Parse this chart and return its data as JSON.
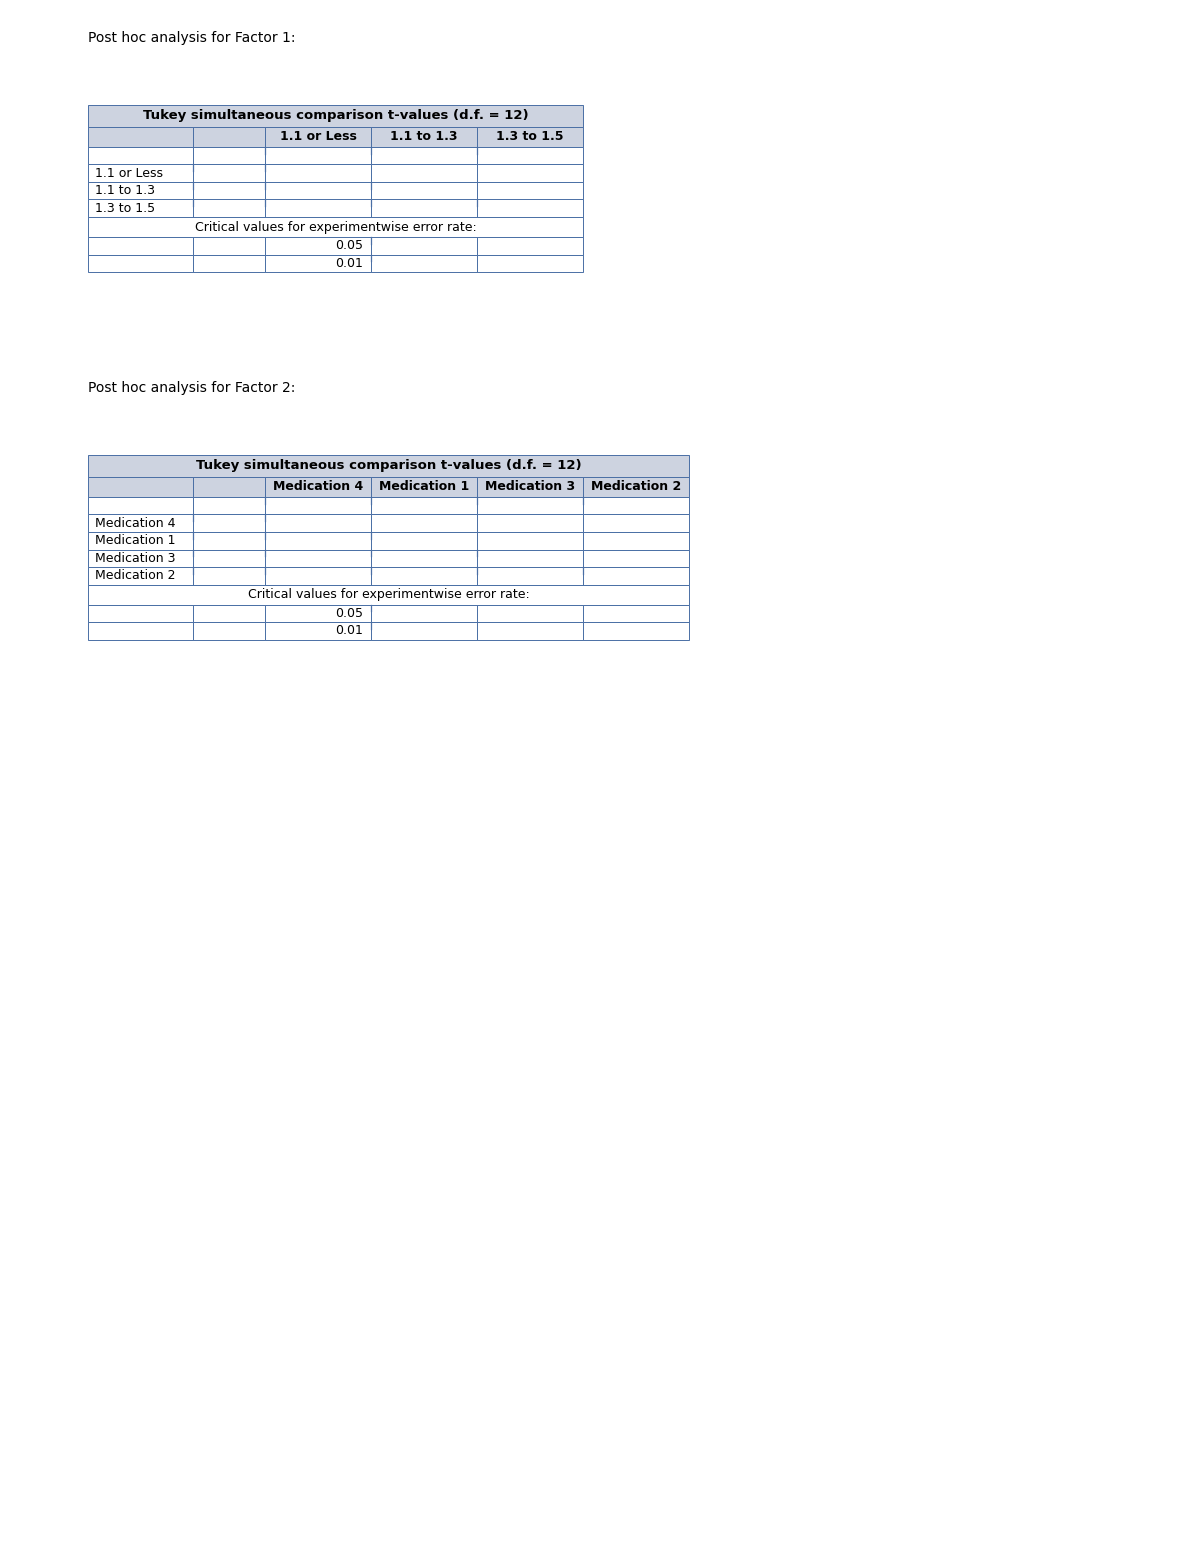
{
  "bg_color": "#ffffff",
  "header_bg": "#cdd3e0",
  "border_color": "#4a6fa5",
  "white": "#ffffff",
  "factor1_title": "Post hoc analysis for Factor 1:",
  "factor2_title": "Post hoc analysis for Factor 2:",
  "factor1_col_headers": [
    "1.1 or Less",
    "1.1 to 1.3",
    "1.3 to 1.5"
  ],
  "factor1_row_labels": [
    "1.1 or Less",
    "1.1 to 1.3",
    "1.3 to 1.5"
  ],
  "factor1_critical_text": "Critical values for experimentwise error rate:",
  "factor1_critical_values": [
    "0.05",
    "0.01"
  ],
  "factor2_col_headers": [
    "Medication 4",
    "Medication 1",
    "Medication 3",
    "Medication 2"
  ],
  "factor2_row_labels": [
    "Medication 4",
    "Medication 1",
    "Medication 3",
    "Medication 2"
  ],
  "factor2_critical_text": "Critical values for experimentwise error rate:",
  "factor2_critical_values": [
    "0.05",
    "0.01"
  ],
  "title_fontsize": 9.5,
  "header_fontsize": 9.0,
  "body_fontsize": 9.0,
  "label_fontsize": 9.0,
  "section_title_fontsize": 10.0,
  "fig_width": 12.0,
  "fig_height": 15.53
}
